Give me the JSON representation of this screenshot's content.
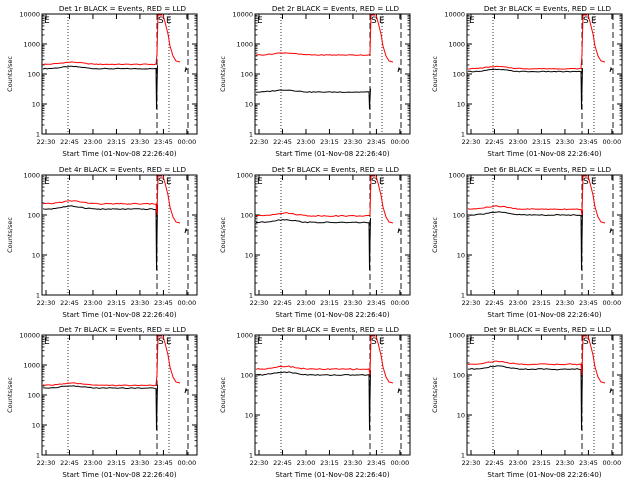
{
  "page": {
    "background": "#ffffff",
    "colors": {
      "events": "#000000",
      "lld": "#ff0000",
      "axis": "#000000"
    }
  },
  "chart_data": [
    {
      "type": "line",
      "title": "Det 1r BLACK = Events, RED = LLD",
      "xlabel": "Start Time (01-Nov-08 22:26:40)",
      "ylabel": "Counts/sec",
      "xticks": [
        "22:30",
        "22:45",
        "23:00",
        "23:15",
        "23:30",
        "23:45",
        "00:00"
      ],
      "yticks": [
        "1",
        "10",
        "100",
        "1000",
        "10000"
      ],
      "ylim": [
        1,
        10000
      ],
      "ylog": true,
      "markers": {
        "start": "E",
        "mid": "S",
        "end": "E"
      },
      "series": [
        {
          "name": "Events",
          "color": "#000000",
          "level": 150
        },
        {
          "name": "LLD",
          "color": "#ff0000",
          "level": 210
        }
      ]
    },
    {
      "type": "line",
      "title": "Det 2r BLACK = Events, RED = LLD",
      "xlabel": "Start Time (01-Nov-08 22:26:40)",
      "ylabel": "Counts/sec",
      "xticks": [
        "22:30",
        "22:45",
        "23:00",
        "23:15",
        "23:30",
        "23:45",
        "00:00"
      ],
      "yticks": [
        "1",
        "10",
        "100",
        "1000",
        "10000"
      ],
      "ylim": [
        1,
        10000
      ],
      "ylog": true,
      "markers": {
        "start": "E",
        "mid": "S",
        "end": "E"
      },
      "series": [
        {
          "name": "Events",
          "color": "#000000",
          "level": 25
        },
        {
          "name": "LLD",
          "color": "#ff0000",
          "level": 430
        }
      ]
    },
    {
      "type": "line",
      "title": "Det 3r BLACK = Events, RED = LLD",
      "xlabel": "Start Time (01-Nov-08 22:26:40)",
      "ylabel": "Counts/sec",
      "xticks": [
        "22:30",
        "22:45",
        "23:00",
        "23:15",
        "23:30",
        "23:45",
        "00:00"
      ],
      "yticks": [
        "1",
        "10",
        "100",
        "1000",
        "10000"
      ],
      "ylim": [
        1,
        10000
      ],
      "ylog": true,
      "markers": {
        "start": "E",
        "mid": "S",
        "end": "E"
      },
      "series": [
        {
          "name": "Events",
          "color": "#000000",
          "level": 120
        },
        {
          "name": "LLD",
          "color": "#ff0000",
          "level": 150
        }
      ]
    },
    {
      "type": "line",
      "title": "Det 4r BLACK = Events, RED = LLD",
      "xlabel": "Start Time (01-Nov-08 22:26:40)",
      "ylabel": "Counts/sec",
      "xticks": [
        "22:30",
        "22:45",
        "23:00",
        "23:15",
        "23:30",
        "23:45",
        "00:00"
      ],
      "yticks": [
        "1",
        "10",
        "100",
        "1000"
      ],
      "ylim": [
        1,
        1000
      ],
      "ylog": true,
      "markers": {
        "start": "E",
        "mid": "S",
        "end": "E"
      },
      "series": [
        {
          "name": "Events",
          "color": "#000000",
          "level": 140
        },
        {
          "name": "LLD",
          "color": "#ff0000",
          "level": 190
        }
      ]
    },
    {
      "type": "line",
      "title": "Det 5r BLACK = Events, RED = LLD",
      "xlabel": "Start Time (01-Nov-08 22:26:40)",
      "ylabel": "Counts/sec",
      "xticks": [
        "22:30",
        "22:45",
        "23:00",
        "23:15",
        "23:30",
        "23:45",
        "00:00"
      ],
      "yticks": [
        "1",
        "10",
        "100",
        "1000"
      ],
      "ylim": [
        1,
        1000
      ],
      "ylog": true,
      "markers": {
        "start": "E",
        "mid": "S",
        "end": "E"
      },
      "series": [
        {
          "name": "Events",
          "color": "#000000",
          "level": 65
        },
        {
          "name": "LLD",
          "color": "#ff0000",
          "level": 95
        }
      ]
    },
    {
      "type": "line",
      "title": "Det 6r BLACK = Events, RED = LLD",
      "xlabel": "Start Time (01-Nov-08 22:26:40)",
      "ylabel": "Counts/sec",
      "xticks": [
        "22:30",
        "22:45",
        "23:00",
        "23:15",
        "23:30",
        "23:45",
        "00:00"
      ],
      "yticks": [
        "1",
        "10",
        "100",
        "1000"
      ],
      "ylim": [
        1,
        1000
      ],
      "ylog": true,
      "markers": {
        "start": "E",
        "mid": "S",
        "end": "E"
      },
      "series": [
        {
          "name": "Events",
          "color": "#000000",
          "level": 100
        },
        {
          "name": "LLD",
          "color": "#ff0000",
          "level": 140
        }
      ]
    },
    {
      "type": "line",
      "title": "Det 7r BLACK = Events, RED = LLD",
      "xlabel": "Start Time (01-Nov-08 22:26:40)",
      "ylabel": "Counts/sec",
      "xticks": [
        "22:30",
        "22:45",
        "23:00",
        "23:15",
        "23:30",
        "23:45",
        "00:00"
      ],
      "yticks": [
        "1",
        "10",
        "100",
        "1000",
        "10000"
      ],
      "ylim": [
        1,
        10000
      ],
      "ylog": true,
      "markers": {
        "start": "E",
        "mid": "S",
        "end": "E"
      },
      "series": [
        {
          "name": "Events",
          "color": "#000000",
          "level": 170
        },
        {
          "name": "LLD",
          "color": "#ff0000",
          "level": 210
        }
      ]
    },
    {
      "type": "line",
      "title": "Det 8r BLACK = Events, RED = LLD",
      "xlabel": "Start Time (01-Nov-08 22:26:40)",
      "ylabel": "Counts/sec",
      "xticks": [
        "22:30",
        "22:45",
        "23:00",
        "23:15",
        "23:30",
        "23:45",
        "00:00"
      ],
      "yticks": [
        "1",
        "10",
        "100",
        "1000"
      ],
      "ylim": [
        1,
        1000
      ],
      "ylog": true,
      "markers": {
        "start": "E",
        "mid": "S",
        "end": "E"
      },
      "series": [
        {
          "name": "Events",
          "color": "#000000",
          "level": 100
        },
        {
          "name": "LLD",
          "color": "#ff0000",
          "level": 140
        }
      ]
    },
    {
      "type": "line",
      "title": "Det 9r BLACK = Events, RED = LLD",
      "xlabel": "Start Time (01-Nov-08 22:26:40)",
      "ylabel": "Counts/sec",
      "xticks": [
        "22:30",
        "22:45",
        "23:00",
        "23:15",
        "23:30",
        "23:45",
        "00:00"
      ],
      "yticks": [
        "1",
        "10",
        "100",
        "1000"
      ],
      "ylim": [
        1,
        1000
      ],
      "ylog": true,
      "markers": {
        "start": "E",
        "mid": "S",
        "end": "E"
      },
      "series": [
        {
          "name": "Events",
          "color": "#000000",
          "level": 140
        },
        {
          "name": "LLD",
          "color": "#ff0000",
          "level": 185
        }
      ]
    }
  ]
}
